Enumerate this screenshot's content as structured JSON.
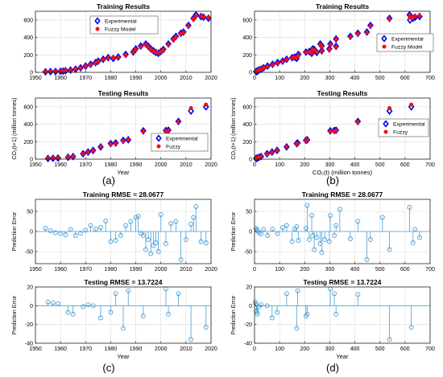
{
  "colors": {
    "experimental": "#0000ee",
    "fuzzy": "#ee1111",
    "error": "#4a9fd8",
    "axis": "#222222"
  },
  "panel_labels": [
    "(a)",
    "(b)",
    "(c)",
    "(d)"
  ],
  "chart_data": [
    {
      "id": "a1",
      "type": "scatter",
      "title": "Training Results",
      "xlabel": "",
      "ylabel": "",
      "xlim": [
        1950,
        2020
      ],
      "ylim": [
        0,
        700
      ],
      "xticks": [
        1950,
        1960,
        1970,
        1980,
        1990,
        2000,
        2010,
        2020
      ],
      "yticks": [
        0,
        200,
        400,
        600
      ],
      "legend": {
        "position": "top-center",
        "entries": [
          "Experimental",
          "Fuzzy Model"
        ]
      },
      "series": [
        {
          "name": "Experimental",
          "marker": "diamond",
          "x": [
            1954,
            1956,
            1958,
            1960,
            1961,
            1962,
            1964,
            1966,
            1968,
            1970,
            1972,
            1974,
            1975,
            1977,
            1979,
            1981,
            1983,
            1986,
            1989,
            1990,
            1992,
            1994,
            1995,
            1996,
            1997,
            1998,
            1999,
            2000,
            2001,
            2003,
            2005,
            2006,
            2008,
            2009,
            2011,
            2013,
            2014,
            2016,
            2017,
            2019
          ],
          "y": [
            6,
            8,
            9,
            12,
            14,
            18,
            26,
            36,
            52,
            72,
            92,
            112,
            128,
            150,
            168,
            160,
            175,
            205,
            232,
            268,
            302,
            325,
            298,
            268,
            248,
            228,
            218,
            238,
            262,
            325,
            382,
            412,
            448,
            462,
            538,
            618,
            658,
            640,
            632,
            620
          ]
        },
        {
          "name": "Fuzzy Model",
          "marker": "circle",
          "x": [
            1954,
            1956,
            1958,
            1960,
            1961,
            1962,
            1964,
            1966,
            1968,
            1970,
            1972,
            1974,
            1975,
            1977,
            1979,
            1981,
            1983,
            1986,
            1989,
            1990,
            1992,
            1994,
            1995,
            1996,
            1997,
            1998,
            1999,
            2000,
            2001,
            2003,
            2005,
            2006,
            2008,
            2009,
            2011,
            2013,
            2014,
            2016,
            2017,
            2019
          ],
          "y": [
            8,
            9,
            11,
            14,
            16,
            20,
            28,
            38,
            50,
            70,
            88,
            108,
            124,
            148,
            165,
            168,
            172,
            198,
            228,
            262,
            296,
            318,
            292,
            262,
            245,
            232,
            222,
            235,
            258,
            318,
            376,
            405,
            442,
            458,
            530,
            610,
            648,
            645,
            635,
            628
          ]
        }
      ]
    },
    {
      "id": "a2",
      "type": "scatter",
      "title": "Testing Results",
      "xlabel": "Year",
      "ylabel": "CO₂(t+1) (million tonnes)",
      "xlim": [
        1950,
        2020
      ],
      "ylim": [
        0,
        700
      ],
      "xticks": [
        1950,
        1960,
        1970,
        1980,
        1990,
        2000,
        2010,
        2020
      ],
      "yticks": [
        0,
        200,
        400,
        600
      ],
      "legend": {
        "position": "bottom-right",
        "entries": [
          "Experimental",
          "Fuzzy"
        ]
      },
      "series": [
        {
          "name": "Experimental",
          "marker": "diamond",
          "x": [
            1955,
            1957,
            1959,
            1963,
            1965,
            1969,
            1971,
            1973,
            1976,
            1980,
            1982,
            1985,
            1987,
            1993,
            2002,
            2003,
            2007,
            2012,
            2018
          ],
          "y": [
            8,
            10,
            13,
            22,
            30,
            62,
            82,
            100,
            140,
            178,
            185,
            215,
            222,
            325,
            328,
            332,
            432,
            552,
            600
          ]
        },
        {
          "name": "Fuzzy",
          "marker": "circle",
          "x": [
            1955,
            1957,
            1959,
            1963,
            1965,
            1969,
            1971,
            1973,
            1976,
            1980,
            1982,
            1985,
            1987,
            1993,
            2002,
            2003,
            2007,
            2012,
            2018
          ],
          "y": [
            10,
            12,
            15,
            24,
            32,
            60,
            80,
            98,
            142,
            172,
            180,
            210,
            225,
            320,
            322,
            328,
            425,
            585,
            625
          ]
        }
      ]
    },
    {
      "id": "b1",
      "type": "scatter",
      "title": "Training Results",
      "xlabel": "",
      "ylabel": "",
      "xlim": [
        0,
        700
      ],
      "ylim": [
        0,
        700
      ],
      "xticks": [
        0,
        100,
        200,
        300,
        400,
        500,
        600,
        700
      ],
      "yticks": [
        0,
        200,
        400,
        600
      ],
      "legend": {
        "position": "right",
        "entries": [
          "Experimental",
          "Fuzzy Model"
        ]
      },
      "series": [
        {
          "name": "Experimental",
          "marker": "diamond",
          "x": [
            6,
            8,
            9,
            12,
            14,
            18,
            26,
            36,
            52,
            72,
            92,
            112,
            128,
            150,
            160,
            168,
            175,
            205,
            218,
            228,
            232,
            238,
            248,
            262,
            268,
            268,
            298,
            302,
            325,
            325,
            382,
            412,
            448,
            462,
            538,
            618,
            620,
            632,
            640,
            658
          ],
          "y": [
            8,
            9,
            12,
            14,
            18,
            26,
            36,
            52,
            72,
            92,
            112,
            128,
            150,
            168,
            175,
            160,
            205,
            232,
            238,
            218,
            268,
            262,
            228,
            325,
            248,
            302,
            268,
            325,
            298,
            382,
            412,
            448,
            462,
            538,
            618,
            658,
            600,
            620,
            632,
            640
          ]
        },
        {
          "name": "Fuzzy Model",
          "marker": "circle",
          "x": [
            6,
            8,
            9,
            12,
            14,
            18,
            26,
            36,
            52,
            72,
            92,
            112,
            128,
            150,
            160,
            168,
            175,
            205,
            218,
            228,
            232,
            238,
            248,
            262,
            268,
            268,
            298,
            302,
            325,
            325,
            382,
            412,
            448,
            462,
            538,
            618,
            620,
            632,
            640,
            658
          ],
          "y": [
            10,
            11,
            14,
            16,
            20,
            28,
            38,
            50,
            70,
            88,
            108,
            124,
            148,
            165,
            172,
            168,
            198,
            228,
            235,
            222,
            262,
            258,
            232,
            318,
            245,
            296,
            262,
            318,
            292,
            376,
            405,
            442,
            458,
            530,
            610,
            648,
            628,
            635,
            645,
            648
          ]
        }
      ]
    },
    {
      "id": "b2",
      "type": "scatter",
      "title": "Testing Results",
      "xlabel": "CO₂(t) (million tonnes)",
      "ylabel": "CO₂(t+1) (million tonnes)",
      "xlim": [
        0,
        700
      ],
      "ylim": [
        0,
        700
      ],
      "xticks": [
        0,
        100,
        200,
        300,
        400,
        500,
        600,
        700
      ],
      "yticks": [
        0,
        200,
        400,
        600
      ],
      "legend": {
        "position": "right",
        "entries": [
          "Experimental",
          "Fuzzy"
        ]
      },
      "series": [
        {
          "name": "Experimental",
          "marker": "diamond",
          "x": [
            6,
            9,
            12,
            18,
            26,
            50,
            70,
            90,
            128,
            168,
            172,
            205,
            210,
            302,
            318,
            325,
            412,
            538,
            625
          ],
          "y": [
            8,
            10,
            13,
            22,
            30,
            62,
            82,
            100,
            140,
            178,
            185,
            215,
            222,
            325,
            328,
            332,
            432,
            552,
            600
          ]
        },
        {
          "name": "Fuzzy",
          "marker": "circle",
          "x": [
            6,
            9,
            12,
            18,
            26,
            50,
            70,
            90,
            128,
            168,
            172,
            205,
            210,
            302,
            318,
            325,
            412,
            538,
            625
          ],
          "y": [
            10,
            12,
            15,
            24,
            32,
            60,
            80,
            98,
            142,
            172,
            180,
            210,
            225,
            320,
            322,
            328,
            425,
            585,
            625
          ]
        }
      ]
    },
    {
      "id": "c1",
      "type": "stem",
      "title": "Training RMSE = 28.0677",
      "xlabel": "",
      "ylabel": "Prediction Error",
      "xlim": [
        1950,
        2020
      ],
      "ylim": [
        -80,
        80
      ],
      "xticks": [
        1950,
        1960,
        1970,
        1980,
        1990,
        2000,
        2010,
        2020
      ],
      "yticks": [
        -50,
        0,
        50
      ],
      "x": [
        1954,
        1956,
        1958,
        1960,
        1962,
        1964,
        1966,
        1968,
        1970,
        1972,
        1974,
        1976,
        1978,
        1980,
        1982,
        1984,
        1986,
        1988,
        1990,
        1991,
        1992,
        1993,
        1994,
        1995,
        1996,
        1997,
        1998,
        1999,
        2000,
        2002,
        2004,
        2006,
        2008,
        2010,
        2012,
        2013,
        2014,
        2016,
        2018
      ],
      "y": [
        8,
        2,
        -3,
        -5,
        -8,
        5,
        -10,
        -4,
        3,
        15,
        6,
        10,
        26,
        -25,
        -22,
        -10,
        15,
        25,
        35,
        38,
        -5,
        -10,
        -45,
        -20,
        -55,
        -35,
        -28,
        -50,
        42,
        -30,
        20,
        25,
        -70,
        -20,
        18,
        35,
        62,
        -25,
        -28
      ]
    },
    {
      "id": "c2",
      "type": "stem",
      "title": "Testing RMSE = 13.7224",
      "xlabel": "Year",
      "ylabel": "Prediction Error",
      "xlim": [
        1950,
        2020
      ],
      "ylim": [
        -40,
        20
      ],
      "xticks": [
        1950,
        1960,
        1970,
        1980,
        1990,
        2000,
        2010,
        2020
      ],
      "yticks": [
        -40,
        -20,
        0,
        20
      ],
      "x": [
        1955,
        1957,
        1959,
        1963,
        1965,
        1969,
        1971,
        1973,
        1976,
        1980,
        1982,
        1985,
        1987,
        1993,
        2002,
        2003,
        2007,
        2012,
        2018
      ],
      "y": [
        4,
        3,
        2,
        -7,
        -9,
        -1,
        1,
        0,
        -13,
        -7,
        13,
        -24,
        16,
        -11,
        18,
        -9,
        13,
        -36,
        -23
      ]
    },
    {
      "id": "d1",
      "type": "stem",
      "title": "Training RMSE = 28.0677",
      "xlabel": "",
      "ylabel": "Prediction Error",
      "xlim": [
        0,
        700
      ],
      "ylim": [
        -80,
        80
      ],
      "xticks": [
        0,
        100,
        200,
        300,
        400,
        500,
        600,
        700
      ],
      "yticks": [
        -50,
        0,
        50
      ],
      "x": [
        6,
        9,
        12,
        18,
        26,
        36,
        52,
        72,
        92,
        112,
        128,
        150,
        160,
        168,
        175,
        205,
        210,
        218,
        228,
        232,
        238,
        248,
        262,
        268,
        280,
        298,
        302,
        318,
        325,
        340,
        382,
        412,
        448,
        462,
        510,
        538,
        618,
        632,
        640,
        658
      ],
      "y": [
        8,
        4,
        2,
        -3,
        -6,
        5,
        -10,
        6,
        -5,
        10,
        15,
        -25,
        6,
        12,
        -22,
        8,
        65,
        -20,
        40,
        -10,
        -45,
        -15,
        -30,
        -52,
        -20,
        -25,
        40,
        -10,
        15,
        55,
        -18,
        25,
        -70,
        -20,
        35,
        -45,
        60,
        -28,
        5,
        -15
      ]
    },
    {
      "id": "d2",
      "type": "stem",
      "title": "Testing RMSE = 13.7224",
      "xlabel": "Year",
      "ylabel": "Prediction Error",
      "xlim": [
        0,
        700
      ],
      "ylim": [
        -40,
        20
      ],
      "xticks": [
        0,
        100,
        200,
        300,
        400,
        500,
        600,
        700
      ],
      "yticks": [
        -40,
        -20,
        0,
        20
      ],
      "x": [
        3,
        5,
        7,
        9,
        12,
        18,
        26,
        50,
        70,
        90,
        128,
        168,
        172,
        205,
        210,
        302,
        318,
        325,
        412,
        538,
        625
      ],
      "y": [
        4,
        2,
        -5,
        -7,
        -9,
        -1,
        1,
        0,
        -13,
        -7,
        13,
        -24,
        16,
        -11,
        -9,
        18,
        13,
        -9,
        12,
        -36,
        -23
      ]
    }
  ]
}
